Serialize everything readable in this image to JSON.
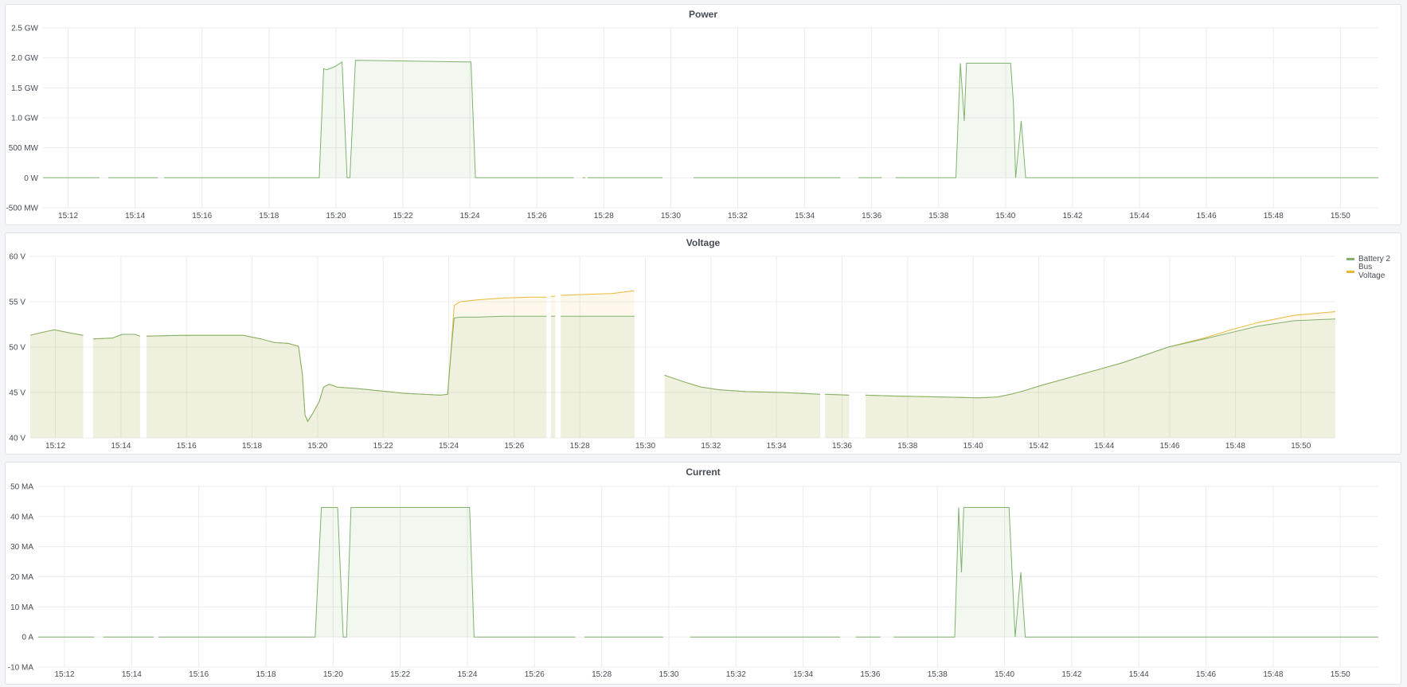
{
  "colors": {
    "green": "#7eb26d",
    "yellow": "#eab839"
  },
  "panels": [
    {
      "title": "Power"
    },
    {
      "title": "Voltage",
      "legend": [
        {
          "name": "Battery 2",
          "color": "#7eb26d"
        },
        {
          "name": "Bus Voltage",
          "color": "#eab839"
        }
      ]
    },
    {
      "title": "Current"
    }
  ],
  "chart_data": [
    {
      "type": "area",
      "title": "Power",
      "xlim": [
        "15:11:15",
        "15:51:08"
      ],
      "ylim": [
        -0.5,
        2.5
      ],
      "yticks": [
        {
          "v": 2.5,
          "label": "2.5 GW"
        },
        {
          "v": 2.0,
          "label": "2.0 GW"
        },
        {
          "v": 1.5,
          "label": "1.5 GW"
        },
        {
          "v": 1.0,
          "label": "1.0 GW"
        },
        {
          "v": 0.5,
          "label": "500 MW"
        },
        {
          "v": 0,
          "label": "0 W"
        },
        {
          "v": -0.5,
          "label": "-500 MW"
        }
      ],
      "xticks": [
        "15:12",
        "15:14",
        "15:16",
        "15:18",
        "15:20",
        "15:22",
        "15:24",
        "15:26",
        "15:28",
        "15:30",
        "15:32",
        "15:34",
        "15:36",
        "15:38",
        "15:40",
        "15:42",
        "15:44",
        "15:46",
        "15:48",
        "15:50"
      ],
      "grid": true,
      "series": [
        {
          "color": "#7eb26d",
          "points": [
            [
              "15:11:15",
              0
            ],
            [
              "15:12:56",
              0
            ],
            [
              "15:12:57",
              null
            ],
            [
              "15:13:12",
              0
            ],
            [
              "15:14:41",
              0
            ],
            [
              "15:14:45",
              null
            ],
            [
              "15:14:52",
              0
            ],
            [
              "15:19:30",
              0
            ],
            [
              "15:19:38",
              1.82
            ],
            [
              "15:19:43",
              1.8
            ],
            [
              "15:19:57",
              1.85
            ],
            [
              "15:20:11",
              1.93
            ],
            [
              "15:20:20",
              0
            ],
            [
              "15:20:25",
              0
            ],
            [
              "15:20:35",
              1.96
            ],
            [
              "15:24:02",
              1.93
            ],
            [
              "15:24:10",
              0
            ],
            [
              "15:27:06",
              0
            ],
            [
              "15:27:10",
              null
            ],
            [
              "15:27:22",
              0
            ],
            [
              "15:27:27",
              0
            ],
            [
              "15:27:29",
              null
            ],
            [
              "15:27:31",
              0
            ],
            [
              "15:29:45",
              0
            ],
            [
              "15:29:50",
              null
            ],
            [
              "15:30:41",
              0
            ],
            [
              "15:35:04",
              0
            ],
            [
              "15:35:10",
              null
            ],
            [
              "15:35:36",
              0
            ],
            [
              "15:36:18",
              0
            ],
            [
              "15:36:25",
              null
            ],
            [
              "15:36:43",
              0
            ],
            [
              "15:38:31",
              0
            ],
            [
              "15:38:39",
              1.91
            ],
            [
              "15:38:46",
              0.95
            ],
            [
              "15:38:50",
              1.91
            ],
            [
              "15:40:09",
              1.91
            ],
            [
              "15:40:14",
              1.25
            ],
            [
              "15:40:18",
              0
            ],
            [
              "15:40:28",
              0.95
            ],
            [
              "15:40:36",
              0
            ],
            [
              "15:51:08",
              0
            ]
          ]
        }
      ]
    },
    {
      "type": "area",
      "title": "Voltage",
      "xlim": [
        "15:11:14",
        "15:51:03"
      ],
      "ylim": [
        40,
        60
      ],
      "yticks": [
        {
          "v": 60,
          "label": "60 V"
        },
        {
          "v": 55,
          "label": "55 V"
        },
        {
          "v": 50,
          "label": "50 V"
        },
        {
          "v": 45,
          "label": "45 V"
        },
        {
          "v": 40,
          "label": "40 V"
        }
      ],
      "xticks": [
        "15:12",
        "15:14",
        "15:16",
        "15:18",
        "15:20",
        "15:22",
        "15:24",
        "15:26",
        "15:28",
        "15:30",
        "15:32",
        "15:34",
        "15:36",
        "15:38",
        "15:40",
        "15:42",
        "15:44",
        "15:46",
        "15:48",
        "15:50"
      ],
      "grid": true,
      "legend_position": "right",
      "x": [
        "15:11:14",
        "15:11:34",
        "15:11:58",
        "15:12:23",
        "15:12:51",
        "15:12:58",
        "15:13:09",
        "15:13:45",
        "15:14:02",
        "15:14:26",
        "15:14:35",
        "15:14:40",
        "15:14:47",
        "15:15:49",
        "15:16:38",
        "15:17:44",
        "15:18:16",
        "15:18:41",
        "15:19:06",
        "15:19:25",
        "15:19:32",
        "15:19:37",
        "15:19:42",
        "15:19:52",
        "15:20:03",
        "15:20:11",
        "15:20:21",
        "15:20:36",
        "15:21:17",
        "15:22:07",
        "15:22:39",
        "15:23:12",
        "15:23:45",
        "15:23:58",
        "15:24:05",
        "15:24:10",
        "15:24:21",
        "15:24:51",
        "15:25:40",
        "15:26:30",
        "15:26:59",
        "15:27:05",
        "15:27:07",
        "15:27:15",
        "15:27:18",
        "15:27:25",
        "15:28:08",
        "15:28:58",
        "15:29:40",
        "15:30:00",
        "15:30:35",
        "15:31:09",
        "15:31:42",
        "15:32:15",
        "15:33:04",
        "15:34:10",
        "15:35:20",
        "15:35:24",
        "15:35:29",
        "15:36:13",
        "15:36:20",
        "15:36:43",
        "15:37:44",
        "15:39:06",
        "15:40:11",
        "15:40:44",
        "15:41:09",
        "15:41:34",
        "15:42:06",
        "15:43:12",
        "15:44:35",
        "15:45:57",
        "15:47:03",
        "15:47:52",
        "15:48:41",
        "15:49:47",
        "15:51:03"
      ],
      "series": [
        {
          "name": "Bus Voltage",
          "color": "#eab839",
          "values": [
            51.3,
            51.6,
            51.9,
            51.6,
            51.3,
            null,
            50.9,
            51.0,
            51.4,
            51.4,
            51.2,
            null,
            51.2,
            51.3,
            51.3,
            51.3,
            50.9,
            50.5,
            50.4,
            50.1,
            47,
            42.5,
            41.8,
            42.8,
            44,
            45.6,
            45.9,
            45.6,
            45.4,
            45.1,
            44.9,
            44.8,
            44.7,
            44.8,
            50.5,
            54.6,
            55.0,
            55.2,
            55.4,
            55.5,
            55.5,
            null,
            55.6,
            55.6,
            null,
            55.7,
            55.8,
            55.9,
            56.2,
            null,
            46.9,
            46.2,
            45.6,
            45.3,
            45.1,
            45.0,
            44.8,
            null,
            44.8,
            44.7,
            null,
            44.7,
            44.6,
            44.5,
            44.4,
            44.5,
            44.8,
            45.2,
            45.8,
            46.9,
            48.3,
            50.0,
            51.0,
            51.9,
            52.7,
            53.5,
            53.9
          ]
        },
        {
          "name": "Battery 2",
          "color": "#7eb26d",
          "values": [
            51.3,
            51.6,
            51.9,
            51.6,
            51.3,
            null,
            50.9,
            51.0,
            51.4,
            51.4,
            51.2,
            null,
            51.2,
            51.3,
            51.3,
            51.3,
            50.9,
            50.5,
            50.4,
            50.1,
            47,
            42.5,
            41.8,
            42.8,
            44,
            45.6,
            45.9,
            45.6,
            45.4,
            45.1,
            44.9,
            44.8,
            44.7,
            44.8,
            50,
            53.2,
            53.3,
            53.3,
            53.4,
            53.4,
            53.4,
            null,
            53.4,
            53.4,
            null,
            53.4,
            53.4,
            53.4,
            53.4,
            null,
            46.9,
            46.2,
            45.6,
            45.3,
            45.1,
            45.0,
            44.8,
            null,
            44.8,
            44.7,
            null,
            44.7,
            44.6,
            44.5,
            44.4,
            44.5,
            44.8,
            45.2,
            45.8,
            46.9,
            48.3,
            50.0,
            50.9,
            51.6,
            52.3,
            52.9,
            53.1
          ]
        }
      ]
    },
    {
      "type": "area",
      "title": "Current",
      "xlim": [
        "15:11:13",
        "15:51:08"
      ],
      "ylim": [
        -10,
        50
      ],
      "yticks": [
        {
          "v": 50,
          "label": "50 MA"
        },
        {
          "v": 40,
          "label": "40 MA"
        },
        {
          "v": 30,
          "label": "30 MA"
        },
        {
          "v": 20,
          "label": "20 MA"
        },
        {
          "v": 10,
          "label": "10 MA"
        },
        {
          "v": 0,
          "label": "0 A"
        },
        {
          "v": -10,
          "label": "-10 MA"
        }
      ],
      "xticks": [
        "15:12",
        "15:14",
        "15:16",
        "15:18",
        "15:20",
        "15:22",
        "15:24",
        "15:26",
        "15:28",
        "15:30",
        "15:32",
        "15:34",
        "15:36",
        "15:38",
        "15:40",
        "15:42",
        "15:44",
        "15:46",
        "15:48",
        "15:50"
      ],
      "grid": true,
      "series": [
        {
          "color": "#7eb26d",
          "points": [
            [
              "15:11:13",
              0
            ],
            [
              "15:12:53",
              0
            ],
            [
              "15:12:58",
              null
            ],
            [
              "15:13:09",
              0
            ],
            [
              "15:14:39",
              0
            ],
            [
              "15:14:43",
              null
            ],
            [
              "15:14:48",
              0
            ],
            [
              "15:19:28",
              0
            ],
            [
              "15:19:39",
              43
            ],
            [
              "15:20:08",
              43
            ],
            [
              "15:20:18",
              0
            ],
            [
              "15:20:24",
              0
            ],
            [
              "15:20:32",
              43
            ],
            [
              "15:24:04",
              43
            ],
            [
              "15:24:12",
              0
            ],
            [
              "15:27:13",
              0
            ],
            [
              "15:27:18",
              null
            ],
            [
              "15:27:29",
              0
            ],
            [
              "15:29:50",
              0
            ],
            [
              "15:30:00",
              null
            ],
            [
              "15:30:38",
              0
            ],
            [
              "15:35:06",
              0
            ],
            [
              "15:35:15",
              null
            ],
            [
              "15:35:34",
              0
            ],
            [
              "15:36:18",
              0
            ],
            [
              "15:36:30",
              null
            ],
            [
              "15:36:42",
              0
            ],
            [
              "15:38:31",
              0
            ],
            [
              "15:38:38",
              43
            ],
            [
              "15:38:43",
              21.5
            ],
            [
              "15:38:47",
              43
            ],
            [
              "15:40:08",
              43
            ],
            [
              "15:40:19",
              0
            ],
            [
              "15:40:29",
              21.5
            ],
            [
              "15:40:37",
              0
            ],
            [
              "15:51:08",
              0
            ]
          ]
        }
      ]
    }
  ]
}
